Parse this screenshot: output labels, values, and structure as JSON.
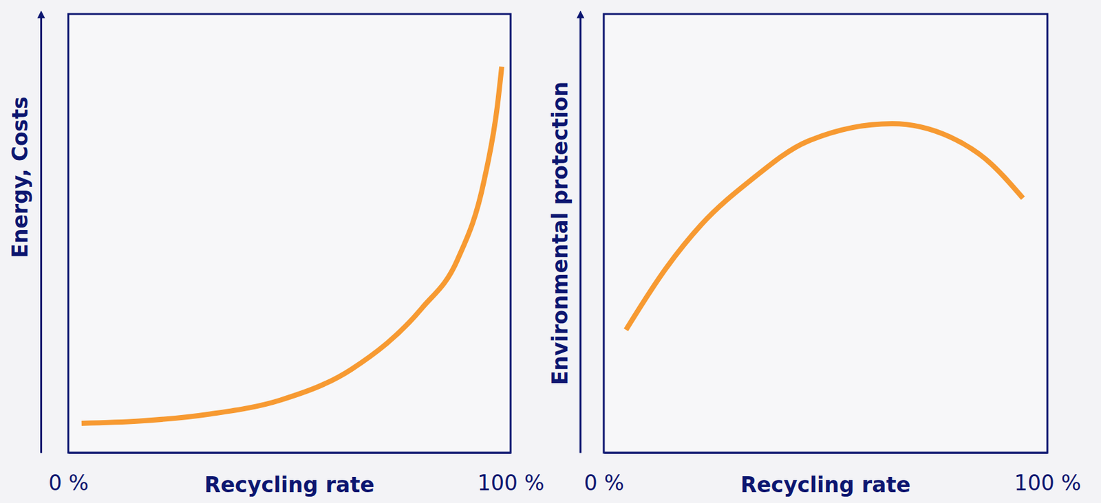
{
  "chart_data": [
    {
      "type": "line",
      "xlabel": "Recycling rate",
      "ylabel": "Energy, Costs",
      "x": [
        3,
        16,
        32,
        48,
        64,
        80,
        88,
        94,
        97,
        98
      ],
      "values": [
        6.7,
        7.2,
        8.8,
        12,
        19,
        33,
        44,
        62,
        79,
        88
      ],
      "color": "#f79a32",
      "xlim": [
        0,
        100
      ],
      "xticks": [
        {
          "value": 0,
          "label": "0 %"
        },
        {
          "value": 100,
          "label": "100 %"
        }
      ],
      "ylim": [
        0,
        100
      ],
      "tick_labels": "x"
    },
    {
      "type": "line",
      "xlabel": "Recycling rate",
      "ylabel": "Environmental protection",
      "x": [
        5,
        14,
        22,
        33,
        46,
        65,
        78,
        86,
        94.5
      ],
      "values": [
        28,
        42,
        52,
        62,
        71,
        75,
        72,
        67,
        58
      ],
      "color": "#f79a32",
      "xlim": [
        0,
        100
      ],
      "xticks": [
        {
          "value": 0,
          "label": "0 %"
        },
        {
          "value": 100,
          "label": "100 %"
        }
      ],
      "ylim": [
        0,
        100
      ],
      "tick_labels": "x"
    }
  ]
}
